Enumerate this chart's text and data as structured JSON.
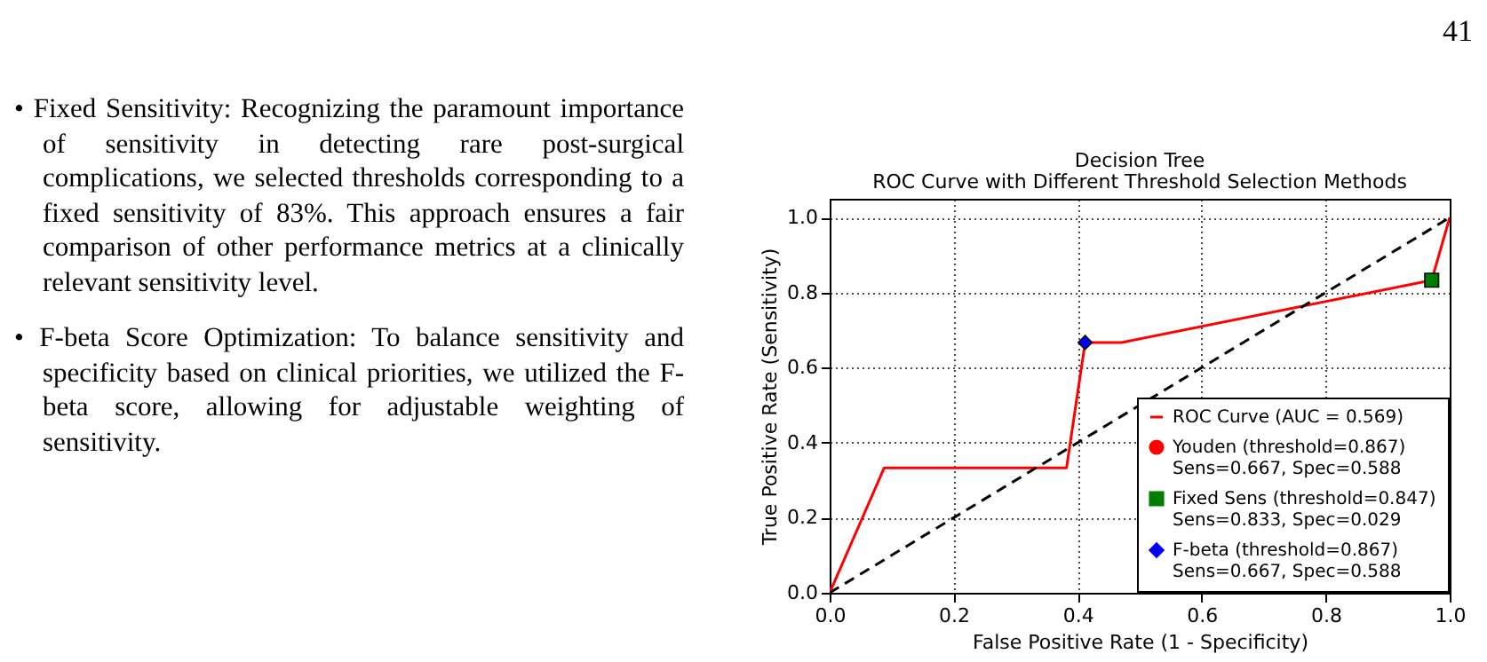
{
  "chart_data": {
    "type": "line",
    "title": "Decision Tree",
    "subtitle": "ROC Curve with Different Threshold Selection Methods",
    "xlabel": "False Positive Rate (1 - Specificity)",
    "ylabel": "True Positive Rate (Sensitivity)",
    "xlim": [
      0,
      1
    ],
    "ylim": [
      0,
      1.05
    ],
    "xticks": [
      {
        "value": 0,
        "label": "0.0"
      },
      {
        "value": 0.2,
        "label": "0.2"
      },
      {
        "value": 0.4,
        "label": "0.4"
      },
      {
        "value": 0.6,
        "label": "0.6"
      },
      {
        "value": 0.8,
        "label": "0.8"
      },
      {
        "value": 1,
        "label": "1.0"
      }
    ],
    "yticks": [
      {
        "value": 0,
        "label": "0.0"
      },
      {
        "value": 0.2,
        "label": "0.2"
      },
      {
        "value": 0.4,
        "label": "0.4"
      },
      {
        "value": 0.6,
        "label": "0.6"
      },
      {
        "value": 0.8,
        "label": "0.8"
      },
      {
        "value": 1,
        "label": "1.0"
      }
    ],
    "grid": true,
    "legend": "bottom right",
    "series": [
      {
        "name": "ROC Curve (AUC = 0.569)",
        "type": "line",
        "color": "#ff0000",
        "marker": "none",
        "line_style": "solid",
        "x": [
          0,
          0.088,
          0.382,
          0.412,
          0.471,
          0.971,
          1
        ],
        "values": [
          0,
          0.333,
          0.333,
          0.667,
          0.667,
          0.833,
          1
        ]
      },
      {
        "type": "line",
        "color": "#000000",
        "marker": "none",
        "line_style": "dashed",
        "x": [
          0,
          1
        ],
        "values": [
          0,
          1
        ]
      },
      {
        "name": "Youden (threshold=0.867)\nSens=0.667, Spec=0.588",
        "type": "scatter",
        "color": "#ff0000",
        "marker": "circle",
        "x": [
          null
        ],
        "values": [
          null
        ]
      },
      {
        "name": "Fixed Sens (threshold=0.847)\nSens=0.833, Spec=0.029",
        "type": "scatter",
        "color": "#008000",
        "marker": "square",
        "x": [
          0.971
        ],
        "values": [
          0.833
        ]
      },
      {
        "name": "F-beta (threshold=0.867)\nSens=0.667, Spec=0.588",
        "type": "scatter",
        "color": "#0000ff",
        "marker": "diamond",
        "x": [
          0.412
        ],
        "values": [
          0.667
        ]
      }
    ],
    "annotations": [
      "41",
      "• Fixed Sensitivity:  Recognizing the paramount importance of sensitivity in detecting rare post-surgical complications, we selected thresholds corresponding to a fixed sensitivity of 83%.  This approach ensures a fair comparison of other performance metrics at a clinically relevant sensitivity level.",
      "• F-beta Score Optimization:  To balance sensitivity and specificity based on clinical priorities, we utilized the F-beta score, allowing for adjustable weighting of sensitivity."
    ]
  }
}
